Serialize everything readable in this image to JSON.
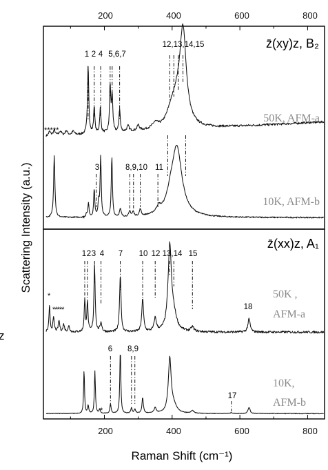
{
  "chart_data": {
    "type": "line",
    "xlabel": "Raman Shift (cm⁻¹)",
    "ylabel": "Scattering Intensity (a.u.)",
    "side_fragment": "z",
    "xlim": [
      20,
      850
    ],
    "xticks": [
      200,
      400,
      600,
      800
    ],
    "panels": [
      {
        "title": "z̄(xy)z, B₂",
        "series": [
          {
            "name": "50K, AFM-a",
            "baseline": 0.26,
            "noise": 0.012,
            "slope": 0.0002,
            "peaks": [
              [
                38,
                0.05,
                4
              ],
              [
                52,
                0.06,
                4
              ],
              [
                70,
                0.05,
                4
              ],
              [
                88,
                0.05,
                4
              ],
              [
                108,
                0.04,
                4
              ],
              [
                152,
                0.78,
                2.2
              ],
              [
                170,
                0.3,
                2.2
              ],
              [
                188,
                0.28,
                2.2
              ],
              [
                217,
                0.52,
                2.2
              ],
              [
                223,
                0.4,
                2.2
              ],
              [
                245,
                0.26,
                2.2
              ],
              [
                270,
                0.06,
                4
              ],
              [
                300,
                0.06,
                4
              ],
              [
                350,
                0.06,
                10
              ],
              [
                395,
                0.1,
                14
              ],
              [
                412,
                0.25,
                18
              ],
              [
                432,
                1.04,
                12
              ]
            ]
          },
          {
            "name": "10K, AFM-b",
            "baseline": 0.06,
            "noise": 0.008,
            "slope": 0.0,
            "peaks": [
              [
                52,
                0.82,
                2.3
              ],
              [
                147,
                0.05,
                1.6
              ],
              [
                153,
                0.18,
                2
              ],
              [
                170,
                0.37,
                2
              ],
              [
                183,
                0.2,
                2
              ],
              [
                189,
                0.8,
                2
              ],
              [
                222,
                0.8,
                2
              ],
              [
                247,
                0.1,
                3
              ],
              [
                275,
                0.07,
                3
              ],
              [
                285,
                0.06,
                3
              ],
              [
                306,
                0.09,
                3
              ],
              [
                360,
                0.08,
                8
              ],
              [
                395,
                0.15,
                14
              ],
              [
                414,
                0.9,
                18
              ]
            ]
          }
        ],
        "peak_labels": [
          {
            "text": "1",
            "x": 152
          },
          {
            "text": "2",
            "x": 168
          },
          {
            "text": "4",
            "x": 186
          },
          {
            "text": "5,6,7",
            "x": 218
          },
          {
            "text": "12,13,14,15",
            "x": 410
          },
          {
            "text": "3",
            "x": 176
          },
          {
            "text": "8,9,10",
            "x": 286
          },
          {
            "text": "11",
            "x": 356
          }
        ],
        "asterisks": "*****"
      },
      {
        "title": "z̄(xx)z, A₁",
        "series": [
          {
            "name": "50K , AFM-a",
            "baseline": 0.25,
            "noise": 0.012,
            "slope": 0.0,
            "peaks": [
              [
                38,
                0.28,
                2
              ],
              [
                50,
                0.15,
                2.5
              ],
              [
                66,
                0.12,
                2.5
              ],
              [
                80,
                0.08,
                2.5
              ],
              [
                95,
                0.06,
                3
              ],
              [
                142,
                0.34,
                2
              ],
              [
                150,
                0.32,
                2
              ],
              [
                171,
                0.72,
                2.2
              ],
              [
                190,
                0.1,
                3
              ],
              [
                247,
                0.62,
                2.5
              ],
              [
                313,
                0.36,
                3
              ],
              [
                350,
                0.14,
                4
              ],
              [
                393,
                0.9,
                6
              ],
              [
                405,
                0.15,
                10
              ],
              [
                460,
                0.05,
                5
              ],
              [
                627,
                0.14,
                4
              ]
            ]
          },
          {
            "name": "10K, AFM-b",
            "baseline": 0.05,
            "noise": 0.006,
            "slope": 0.0,
            "peaks": [
              [
                140,
                0.85,
                1.6
              ],
              [
                152,
                0.15,
                2
              ],
              [
                172,
                0.82,
                1.8
              ],
              [
                186,
                0.08,
                2
              ],
              [
                218,
                0.18,
                2.2
              ],
              [
                247,
                1.25,
                1.8
              ],
              [
                280,
                0.1,
                2.5
              ],
              [
                290,
                0.08,
                2.5
              ],
              [
                313,
                0.3,
                2.5
              ],
              [
                350,
                0.1,
                4
              ],
              [
                393,
                1.05,
                5
              ],
              [
                405,
                0.14,
                10
              ],
              [
                460,
                0.05,
                5
              ],
              [
                575,
                0.02,
                3
              ],
              [
                627,
                0.12,
                3.5
              ]
            ]
          }
        ],
        "peak_labels": [
          {
            "text": "1",
            "x": 138
          },
          {
            "text": "2",
            "x": 150
          },
          {
            "text": "3",
            "x": 162
          },
          {
            "text": "4",
            "x": 189
          },
          {
            "text": "7",
            "x": 246
          },
          {
            "text": "10",
            "x": 311
          },
          {
            "text": "12",
            "x": 350
          },
          {
            "text": "13,14",
            "x": 396
          },
          {
            "text": "15",
            "x": 462
          },
          {
            "text": "6",
            "x": 217
          },
          {
            "text": "8,9",
            "x": 282
          },
          {
            "text": "17",
            "x": 580
          },
          {
            "text": "18",
            "x": 630
          }
        ],
        "asterisks": "******"
      }
    ]
  }
}
